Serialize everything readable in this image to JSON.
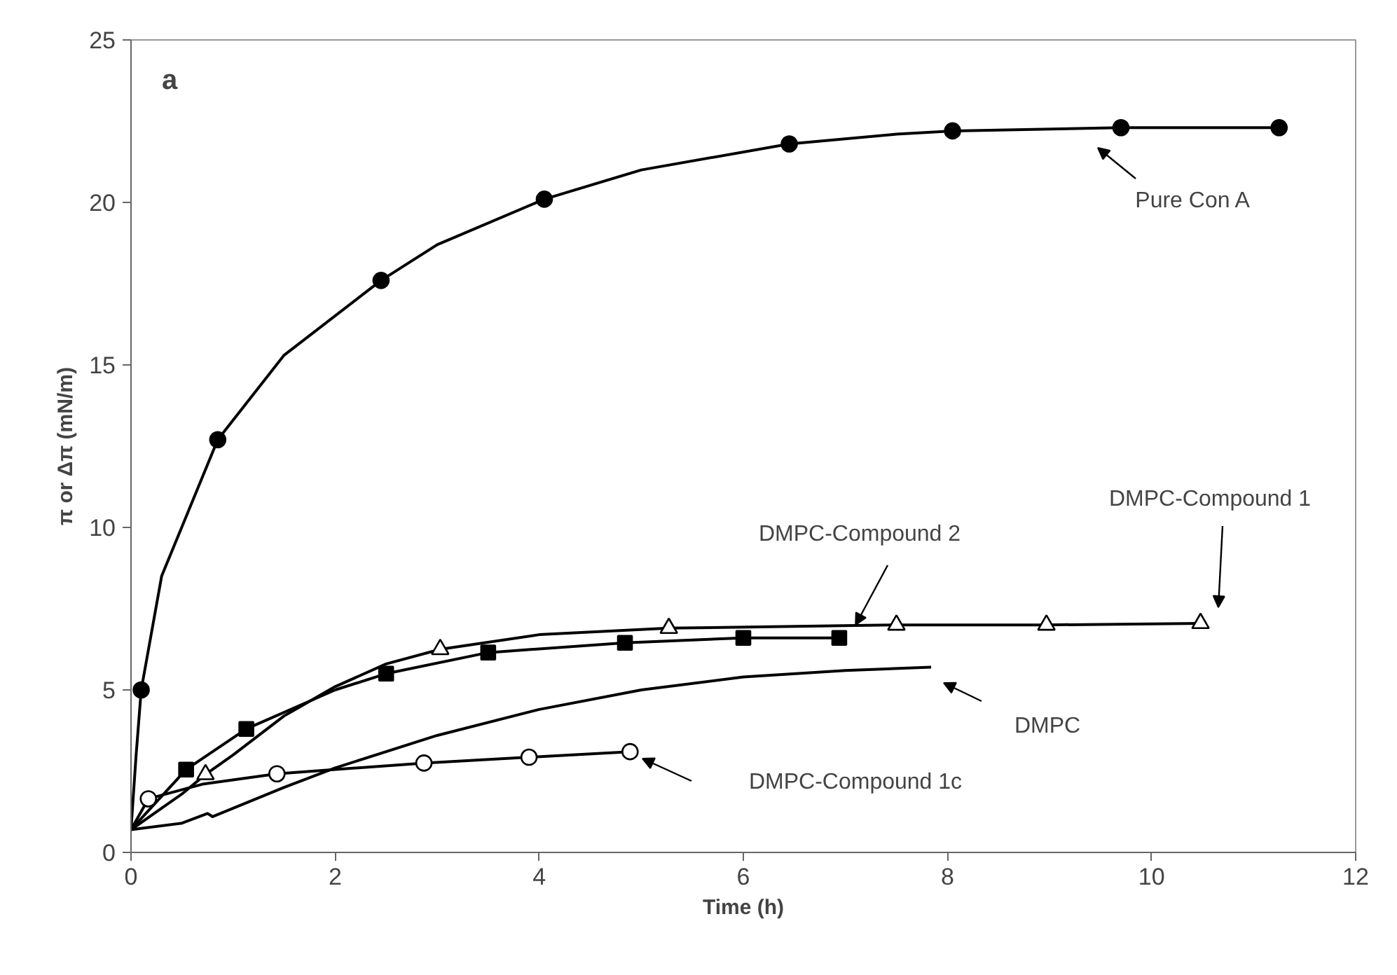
{
  "chart_data": {
    "type": "line",
    "xlabel": "Time (h)",
    "ylabel": "π or Δπ (mN/m)",
    "xlim": [
      0,
      12
    ],
    "ylim": [
      0,
      25
    ],
    "xticks": [
      0,
      2,
      4,
      6,
      8,
      10,
      12
    ],
    "yticks": [
      0,
      5,
      10,
      15,
      20,
      25
    ],
    "grid": false,
    "line_style": "solid",
    "series": [
      {
        "color": "#000000",
        "marker": "none",
        "x": [
          0,
          0.05,
          0.1,
          0.3,
          0.85,
          1.5,
          2.45,
          3,
          4.05,
          5,
          6.45,
          7.5,
          8.05,
          9.7,
          11.25
        ],
        "values": [
          0.7,
          3,
          5,
          8.5,
          12.7,
          15.3,
          17.6,
          18.7,
          20.1,
          21,
          21.8,
          22.1,
          22.2,
          22.3,
          22.3
        ]
      },
      {
        "type": "scatter",
        "color": "#000000",
        "marker": "circle",
        "x": [
          0.1,
          0.85,
          2.45,
          4.05,
          6.45,
          8.05,
          9.7,
          11.25
        ],
        "values": [
          5,
          12.7,
          17.6,
          20.1,
          21.8,
          22.2,
          22.3,
          22.3
        ]
      },
      {
        "color": "#000000",
        "marker": "none",
        "x": [
          0,
          0.5,
          0.73,
          1,
          1.5,
          2,
          2.5,
          3.03,
          4,
          5.27,
          7.5,
          8.97,
          10.48
        ],
        "values": [
          0.7,
          1.8,
          2.4,
          3,
          4.2,
          5.1,
          5.8,
          6.25,
          6.7,
          6.9,
          7.0,
          7.0,
          7.05
        ]
      },
      {
        "type": "scatter",
        "color": "#ffffff",
        "marker": "triangle",
        "x": [
          0.73,
          3.03,
          5.27,
          7.5,
          8.97,
          10.48
        ],
        "values": [
          2.4,
          6.25,
          6.9,
          7.0,
          7.0,
          7.05
        ]
      },
      {
        "color": "#000000",
        "marker": "none",
        "x": [
          0,
          0.54,
          1.13,
          2,
          2.5,
          3.5,
          4.84,
          6.0,
          6.94
        ],
        "values": [
          0.7,
          2.55,
          3.8,
          5.0,
          5.5,
          6.15,
          6.45,
          6.6,
          6.6
        ]
      },
      {
        "type": "scatter",
        "color": "#000000",
        "marker": "square",
        "x": [
          0.54,
          1.13,
          2.5,
          3.5,
          4.84,
          6.0,
          6.94
        ],
        "values": [
          2.55,
          3.8,
          5.5,
          6.15,
          6.45,
          6.6,
          6.6
        ]
      },
      {
        "color": "#000000",
        "marker": "none",
        "x": [
          0,
          0.5,
          0.75,
          0.8,
          1.5,
          2,
          3,
          4,
          5,
          6,
          7,
          7.84
        ],
        "values": [
          0.7,
          0.9,
          1.2,
          1.1,
          2.0,
          2.6,
          3.6,
          4.4,
          5.0,
          5.4,
          5.6,
          5.7
        ]
      },
      {
        "color": "#000000",
        "marker": "none",
        "x": [
          0,
          0.17,
          0.7,
          1.43,
          2.87,
          3.9,
          4.89
        ],
        "values": [
          0.7,
          1.65,
          2.1,
          2.42,
          2.75,
          2.93,
          3.1
        ]
      },
      {
        "type": "scatter",
        "color": "#ffffff",
        "marker": "circle",
        "x": [
          0.17,
          1.43,
          2.87,
          3.9,
          4.89
        ],
        "values": [
          1.65,
          2.42,
          2.75,
          2.93,
          3.1
        ]
      }
    ],
    "annotations": [
      "a",
      "Pure Con A",
      {
        "text": "DMPC-Compound 2",
        "x": 7.1,
        "y": 7.0
      },
      "DMPC-Compound 1",
      "DMPC",
      "DMPC-Compound 1c"
    ]
  }
}
